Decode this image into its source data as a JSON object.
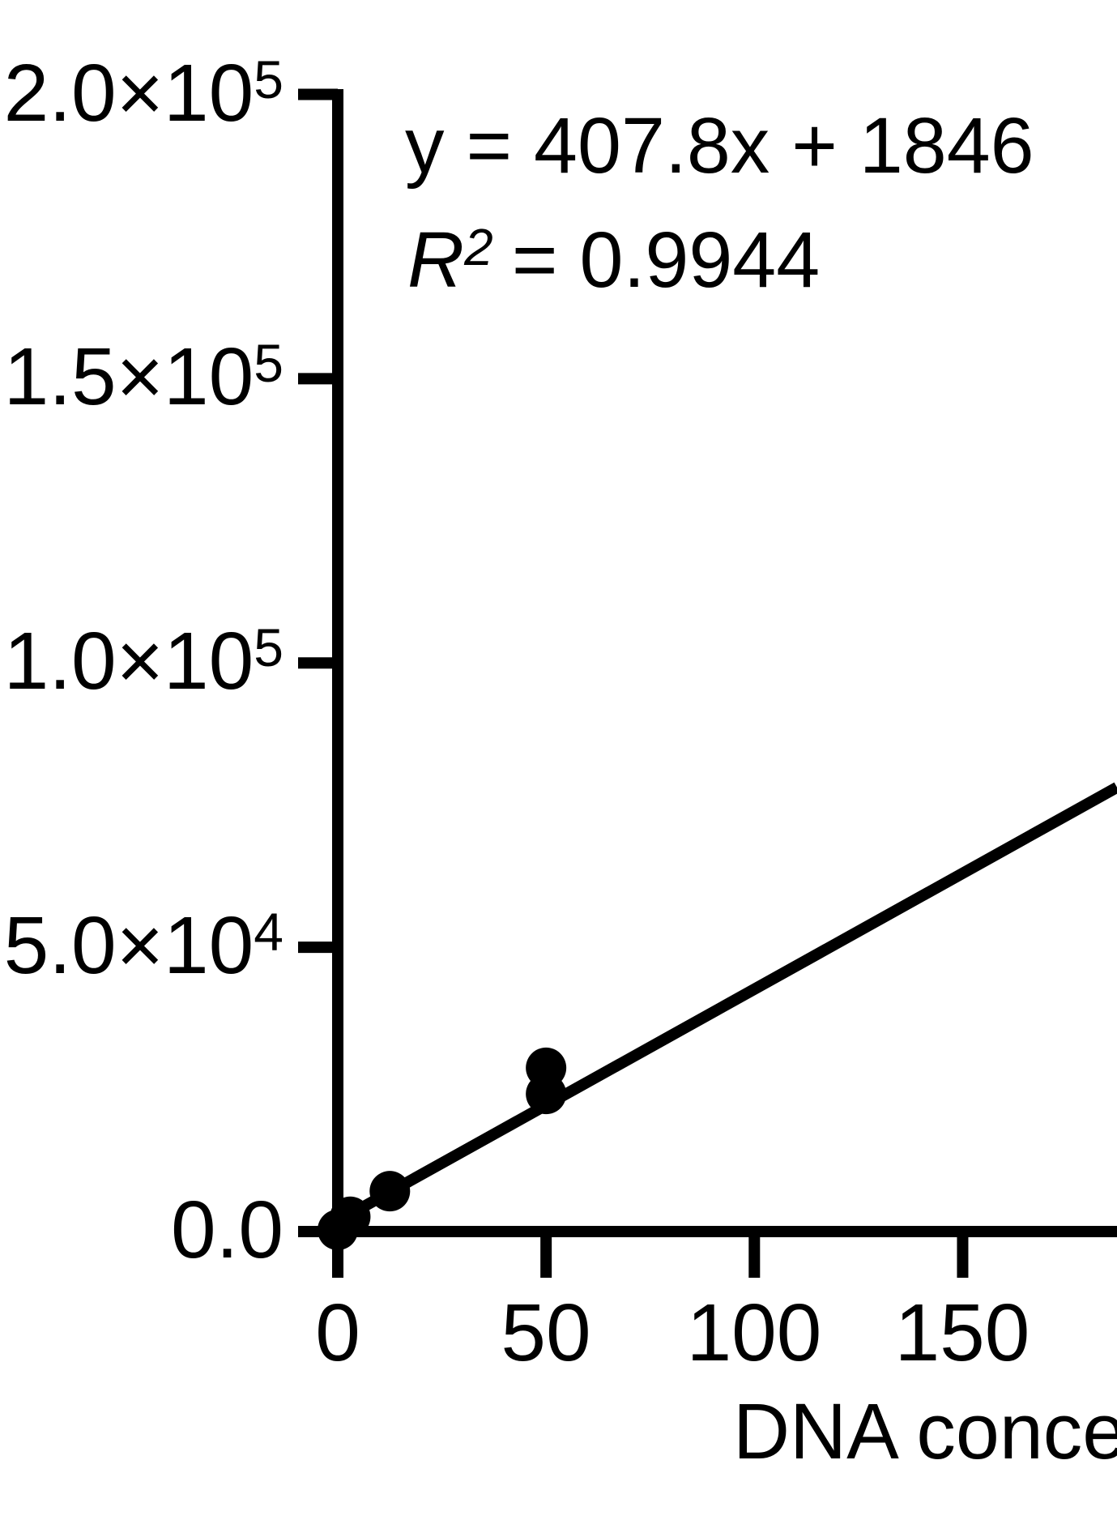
{
  "figure": {
    "background": "#ffffff",
    "ink_color": "#000000"
  },
  "annotations": {
    "equation_line": "y = 407.8x + 1846",
    "r_label": "R",
    "r_sup": "2",
    "r_rest": "= 0.9944"
  },
  "axes": {
    "x": {
      "tick_labels": [
        "0",
        "50",
        "100",
        "150"
      ],
      "title_visible": "DNA conce"
    },
    "y": {
      "tick_labels": [
        {
          "main": "2.0×10",
          "sup": "5"
        },
        {
          "main": "1.5×10",
          "sup": "5"
        },
        {
          "main": "1.0×10",
          "sup": "5"
        },
        {
          "main": "5.0×10",
          "sup": "4"
        },
        {
          "main": "0.0",
          "sup": ""
        }
      ]
    }
  },
  "chart_data": {
    "type": "scatter",
    "title": "",
    "xlabel": "DNA conce",
    "ylabel": "",
    "xlim": [
      0,
      187
    ],
    "ylim": [
      0,
      200000
    ],
    "x_ticks": [
      0,
      50,
      100,
      150
    ],
    "y_ticks": [
      0,
      50000,
      100000,
      150000,
      200000
    ],
    "grid": false,
    "legend": "none",
    "marker": {
      "shape": "circle",
      "radius_px": 25,
      "color": "#000000"
    },
    "points": [
      {
        "x": 0,
        "y": 300
      },
      {
        "x": 3,
        "y": 2600
      },
      {
        "x": 12.5,
        "y": 7100
      },
      {
        "x": 50,
        "y": 24200
      },
      {
        "x": 50,
        "y": 28800
      }
    ],
    "fit_line": {
      "slope": 407.8,
      "intercept": 1846,
      "r_squared": 0.9944,
      "x_start": 0,
      "x_end": 187.05
    }
  }
}
